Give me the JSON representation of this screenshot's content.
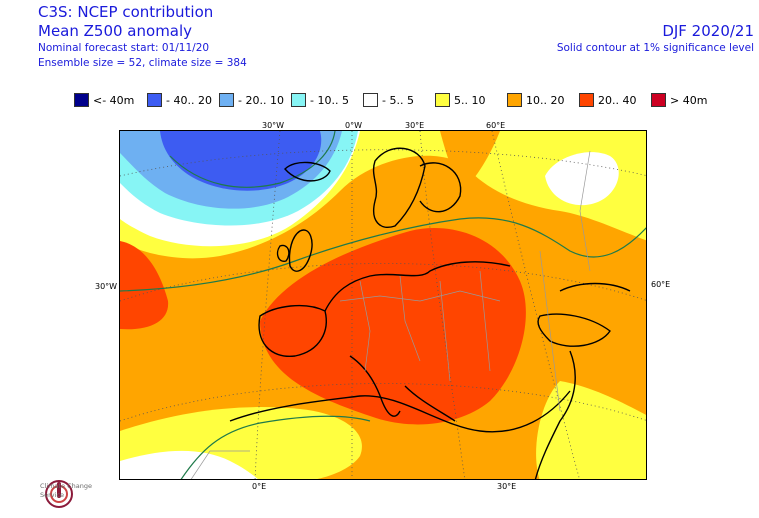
{
  "header": {
    "title": "C3S: NCEP contribution",
    "subtitle": "Mean Z500 anomaly",
    "start": "Nominal forecast start: 01/11/20",
    "ensemble": "Ensemble size = 52, climate size = 384",
    "season": "DJF 2020/21",
    "significance": "Solid contour at 1% significance level"
  },
  "legend": [
    {
      "label": "<- 40m",
      "color": "#00008b"
    },
    {
      "label": "- 40.. 20",
      "color": "#3d5cf2"
    },
    {
      "label": "- 20.. 10",
      "color": "#6eb0f2"
    },
    {
      "label": "- 10.. 5",
      "color": "#87f5f5"
    },
    {
      "label": "- 5.. 5",
      "color": "#ffffff"
    },
    {
      "label": "5.. 10",
      "color": "#ffff40"
    },
    {
      "label": "10.. 20",
      "color": "#ffa500"
    },
    {
      "label": "20.. 40",
      "color": "#ff4500"
    },
    {
      "label": "> 40m",
      "color": "#cc0022"
    }
  ],
  "axes": {
    "top": [
      "30°W",
      "0°W",
      "30°E",
      "60°E"
    ],
    "left": "30°W",
    "right": "60°E",
    "bottom": [
      "0°E",
      "30°E"
    ]
  },
  "logo": {
    "text": "Climate Change Service"
  }
}
